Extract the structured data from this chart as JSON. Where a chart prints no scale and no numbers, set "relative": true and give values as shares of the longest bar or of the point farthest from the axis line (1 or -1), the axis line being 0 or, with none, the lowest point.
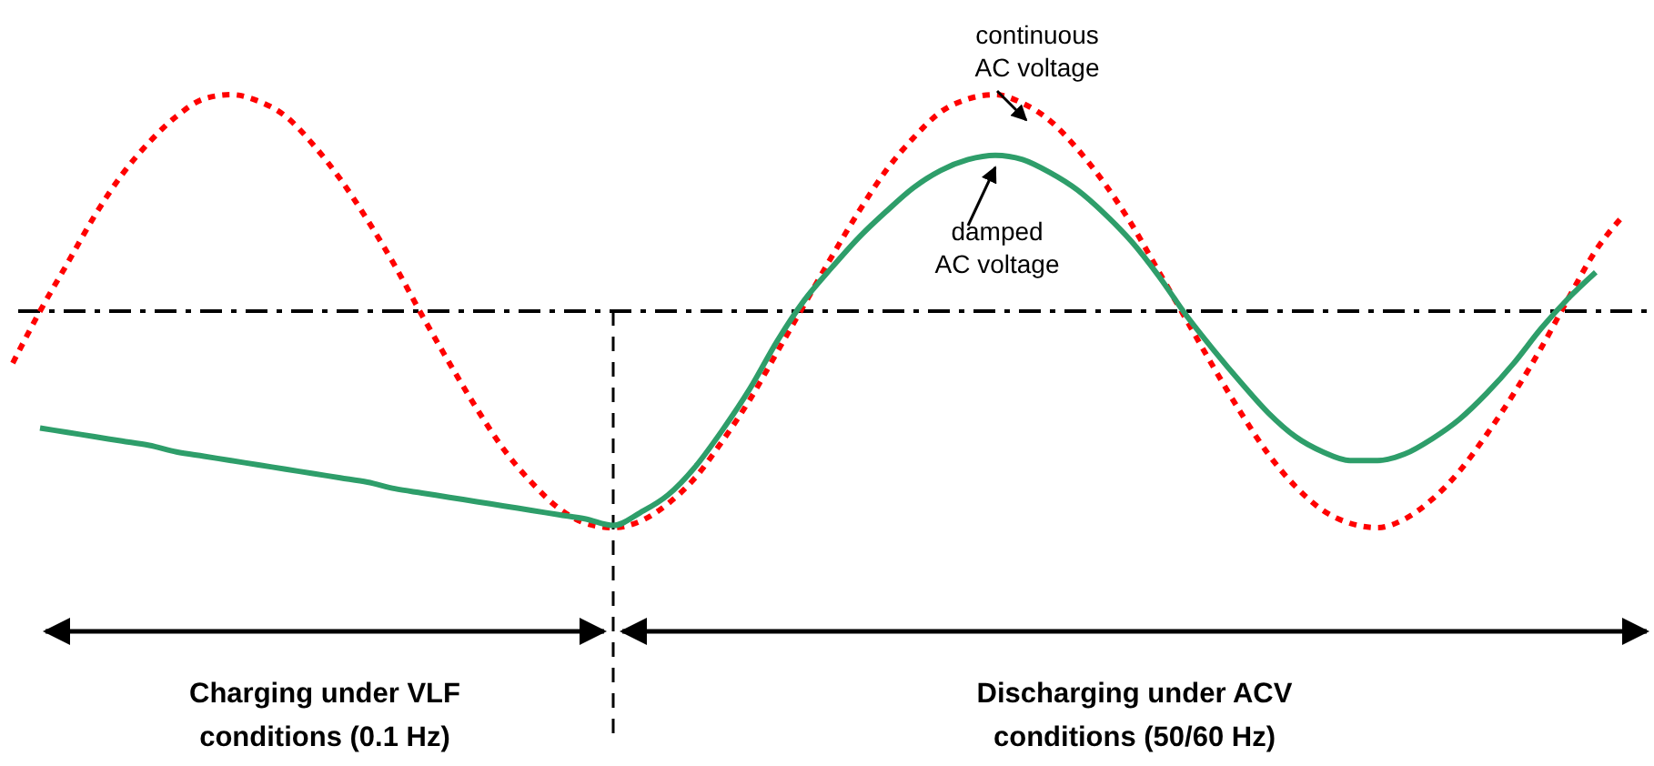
{
  "chart_data": {
    "type": "line",
    "relative": true,
    "grid": false,
    "marker": "none",
    "categories": [
      null,
      null,
      null,
      null,
      null,
      null,
      null,
      null,
      null,
      null,
      null,
      null,
      null,
      null,
      null,
      null,
      null,
      null,
      null,
      null,
      null,
      null,
      null,
      null,
      null,
      null,
      null,
      null,
      null,
      null,
      null,
      null,
      null,
      null,
      null,
      null,
      null,
      null,
      null,
      null,
      null,
      null,
      null,
      null,
      null,
      null,
      null,
      null,
      null,
      null,
      null,
      null,
      null,
      null,
      null,
      null,
      null,
      null,
      null,
      null
    ],
    "series": [
      {
        "name": "continuous AC voltage",
        "color": "#ff0000",
        "line_style": "dotted",
        "values": [
          -0.24,
          0,
          0.22,
          0.44,
          0.63,
          0.78,
          0.9,
          0.98,
          1,
          0.97,
          0.9,
          0.77,
          0.61,
          0.42,
          0.21,
          -0.02,
          -0.24,
          -0.45,
          -0.64,
          -0.79,
          -0.91,
          -0.98,
          -1,
          -0.97,
          -0.89,
          -0.77,
          -0.6,
          -0.41,
          -0.19,
          0.03,
          0.25,
          0.46,
          0.65,
          0.8,
          0.92,
          0.98,
          1,
          0.96,
          0.88,
          0.75,
          0.59,
          0.4,
          0.18,
          -0.04,
          -0.26,
          -0.47,
          -0.66,
          -0.81,
          -0.92,
          -0.98,
          -1,
          -0.96,
          -0.87,
          -0.74,
          -0.57,
          -0.38,
          -0.17,
          0.06,
          0.28,
          0.44
        ]
      },
      {
        "name": "damped AC voltage",
        "color": "#2e9e6a",
        "line_style": "solid",
        "values": [
          null,
          -0.54,
          -0.56,
          -0.58,
          -0.6,
          -0.62,
          -0.65,
          -0.67,
          -0.69,
          -0.71,
          -0.73,
          -0.75,
          -0.77,
          -0.79,
          -0.82,
          -0.84,
          -0.86,
          -0.88,
          -0.9,
          -0.92,
          -0.94,
          -0.96,
          -0.99,
          -0.93,
          -0.85,
          -0.72,
          -0.55,
          -0.36,
          -0.14,
          0.05,
          0.2,
          0.34,
          0.46,
          0.57,
          0.65,
          0.7,
          0.72,
          0.7,
          0.64,
          0.56,
          0.45,
          0.32,
          0.16,
          -0.02,
          -0.18,
          -0.33,
          -0.47,
          -0.58,
          -0.65,
          -0.69,
          -0.69,
          -0.66,
          -0.59,
          -0.5,
          -0.38,
          -0.24,
          -0.08,
          0.06,
          0.18,
          null
        ]
      }
    ],
    "ref_lines": [
      {
        "axis": "y",
        "value": 0,
        "color": "#000000",
        "line_style": "dashdot"
      }
    ],
    "annotations": [
      "Charging under VLF\nconditions (0.1 Hz)",
      "Discharging under ACV\nconditions (50/60 Hz)"
    ]
  }
}
